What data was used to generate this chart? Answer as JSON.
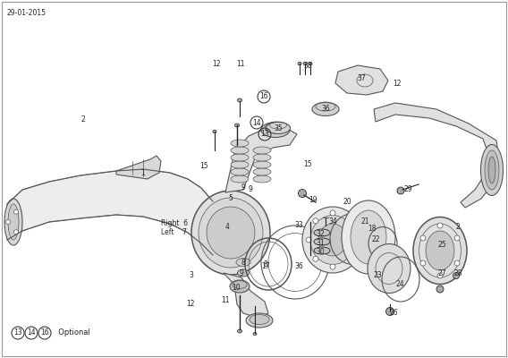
{
  "bg": "#ffffff",
  "lc": "#555555",
  "dc": "#222222",
  "date": "29-01-2015",
  "optional_text": "Optional"
}
